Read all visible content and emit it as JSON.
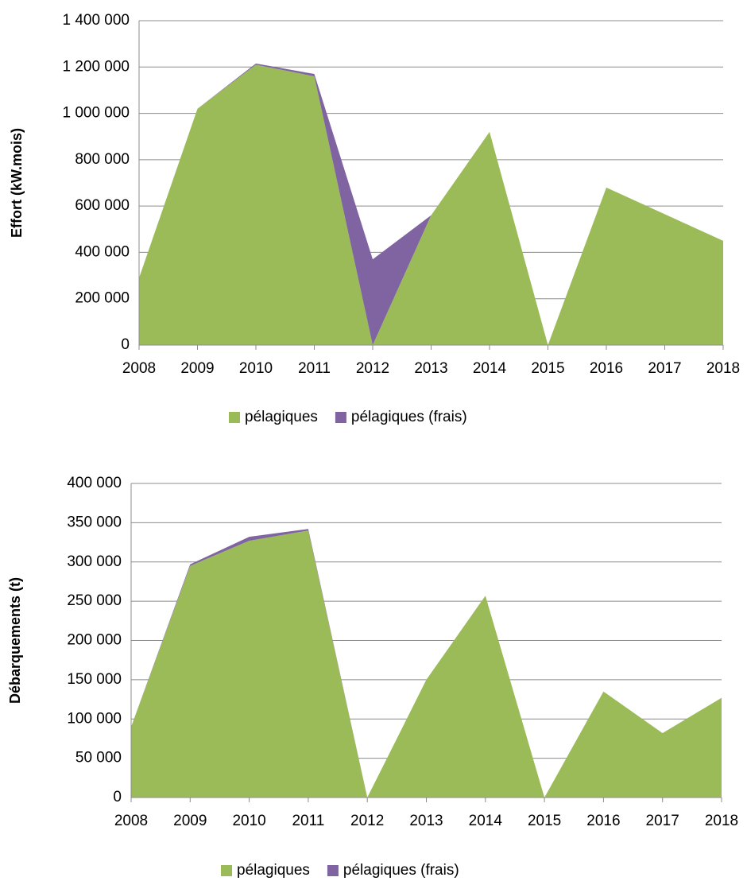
{
  "chart_data": [
    {
      "type": "area_stacked",
      "y_label": "Effort  (kW.mois)",
      "categories": [
        "2008",
        "2009",
        "2010",
        "2011",
        "2012",
        "2013",
        "2014",
        "2015",
        "2016",
        "2017",
        "2018"
      ],
      "series": [
        {
          "name": "pélagiques",
          "color": "#9bbb59",
          "values": [
            290000,
            1020000,
            1210000,
            1160000,
            0,
            560000,
            920000,
            0,
            680000,
            565000,
            450000
          ]
        },
        {
          "name": "pélagiques (frais)",
          "color": "#8064a2",
          "values": [
            0,
            0,
            5000,
            10000,
            370000,
            0,
            0,
            0,
            0,
            0,
            0
          ]
        }
      ],
      "ylim": [
        0,
        1400000
      ],
      "yticks": [
        0,
        {
          "value": 200000,
          "label": "200 000"
        },
        {
          "value": 400000,
          "label": "400 000"
        },
        {
          "value": 600000,
          "label": "600 000"
        },
        {
          "value": 800000,
          "label": "800 000"
        },
        {
          "value": 1000000,
          "label": "1 000 000"
        },
        {
          "value": 1200000,
          "label": "1 200 000"
        },
        {
          "value": 1400000,
          "label": "1 400 000"
        }
      ],
      "grid": true,
      "legend": "bottom"
    },
    {
      "type": "area_stacked",
      "y_label": "Débarquements  (t)",
      "categories": [
        "2008",
        "2009",
        "2010",
        "2011",
        "2012",
        "2013",
        "2014",
        "2015",
        "2016",
        "2017",
        "2018"
      ],
      "series": [
        {
          "name": "pélagiques",
          "color": "#9bbb59",
          "values": [
            90000,
            295000,
            327000,
            340000,
            0,
            150000,
            257000,
            0,
            135000,
            82000,
            127000
          ]
        },
        {
          "name": "pélagiques (frais)",
          "color": "#8064a2",
          "values": [
            0,
            2000,
            5000,
            2000,
            0,
            0,
            0,
            0,
            0,
            0,
            0
          ]
        }
      ],
      "ylim": [
        0,
        400000
      ],
      "yticks": [
        0,
        {
          "value": 50000,
          "label": "50 000"
        },
        {
          "value": 100000,
          "label": "100 000"
        },
        {
          "value": 150000,
          "label": "150 000"
        },
        {
          "value": 200000,
          "label": "200 000"
        },
        {
          "value": 250000,
          "label": "250 000"
        },
        {
          "value": 300000,
          "label": "300 000"
        },
        {
          "value": 350000,
          "label": "350 000"
        },
        {
          "value": 400000,
          "label": "400 000"
        }
      ],
      "grid": true,
      "legend": "bottom"
    }
  ]
}
